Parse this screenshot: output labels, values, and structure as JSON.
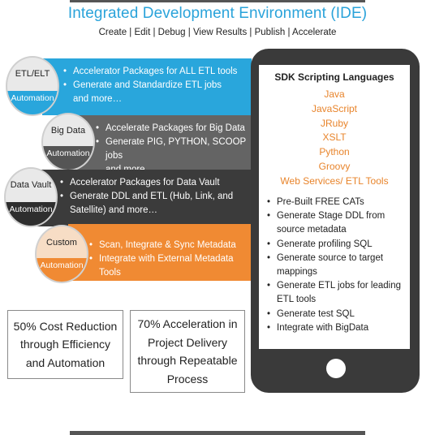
{
  "header": {
    "title": "Integrated Development Environment (IDE)",
    "subtitle": "Create | Edit | Debug | View Results | Publish | Accelerate"
  },
  "rows": [
    {
      "name": "ETL/ELT",
      "sub": "Automation",
      "bullets": [
        "Accelerator Packages for ALL ETL tools",
        "Generate and Standardize ETL jobs"
      ],
      "more": "and more…",
      "band_color": "#29a6dc",
      "circle_bottom_color": "#29a6dc"
    },
    {
      "name": "Big Data",
      "sub": "Automation",
      "bullets": [
        "Accelerate Packages for Big Data",
        "Generate PIG, PYTHON, SCOOP jobs"
      ],
      "more": "and more…",
      "band_color": "#646464",
      "circle_bottom_color": "#555555"
    },
    {
      "name": "Data Vault",
      "sub": "Automation",
      "bullets": [
        "Accelerator Packages for Data Vault",
        "Generate DDL and ETL (Hub, Link, and Satellite) and more…"
      ],
      "more": "",
      "band_color": "#3b3b3b",
      "circle_bottom_color": "#2e2e2e"
    },
    {
      "name": "Custom",
      "sub": "Automation",
      "bullets": [
        "Scan, Integrate & Sync Metadata",
        "Integrate with External Metadata Tools"
      ],
      "more": "",
      "band_color": "#f08a33",
      "circle_bottom_color": "#f08a33"
    }
  ],
  "sdk": {
    "title": "SDK Scripting Languages",
    "languages": [
      "Java",
      "JavaScript",
      "JRuby",
      "XSLT",
      "Python",
      "Groovy",
      "Web Services/ ETL Tools"
    ],
    "features": [
      "Pre-Built FREE CATs",
      "Generate Stage DDL from source metadata",
      "Generate profiling SQL",
      "Generate source to target mappings",
      "Generate ETL jobs for leading ETL tools",
      "Generate test SQL",
      "Integrate with BigData"
    ]
  },
  "boxes": [
    "50% Cost Reduction through Efficiency and Automation",
    "70% Acceleration in Project Delivery through Repeatable Process"
  ]
}
